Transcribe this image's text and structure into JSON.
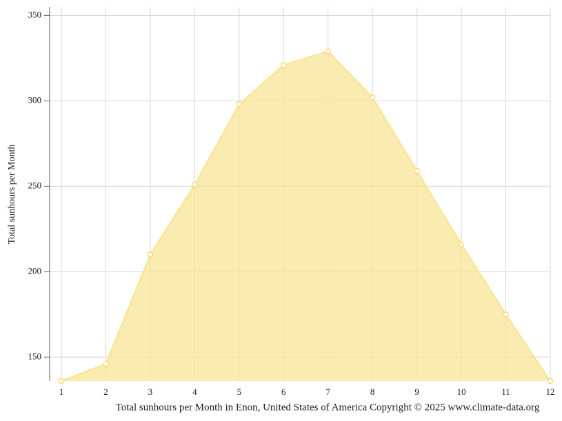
{
  "chart_data": {
    "type": "area",
    "x": [
      1,
      2,
      3,
      4,
      5,
      6,
      7,
      8,
      9,
      10,
      11,
      12
    ],
    "xlim": [
      1,
      12
    ],
    "xticks": [
      1,
      2,
      3,
      4,
      5,
      6,
      7,
      8,
      9,
      10,
      11,
      12
    ],
    "ylim": [
      136,
      355
    ],
    "yticks": [
      150,
      200,
      250,
      300,
      350
    ],
    "y_label": "Total sunhours per Month",
    "x_label": "Total sunhours per Month in Enon, United States of America Copyright © 2025 www.climate-data.org",
    "grid": true,
    "series": [
      {
        "name": "Total sunhours per Month",
        "color": "#f8e38e",
        "values": [
          136,
          146,
          210,
          251,
          298,
          321,
          329,
          302,
          259,
          216,
          175,
          136
        ]
      }
    ]
  }
}
